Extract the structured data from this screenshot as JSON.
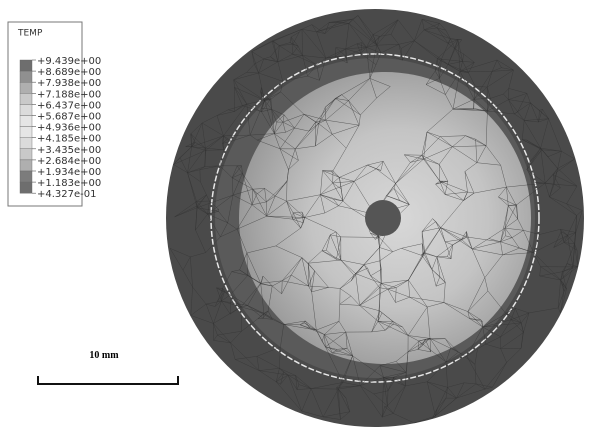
{
  "legend": {
    "title": "TEMP",
    "labels": [
      "+9.439e+00",
      "+8.689e+00",
      "+7.938e+00",
      "+7.188e+00",
      "+6.437e+00",
      "+5.687e+00",
      "+4.936e+00",
      "+4.185e+00",
      "+3.435e+00",
      "+2.684e+00",
      "+1.934e+00",
      "+1.183e+00",
      "+4.327e-01"
    ]
  },
  "scale_bar": {
    "label": "10 mm"
  }
}
